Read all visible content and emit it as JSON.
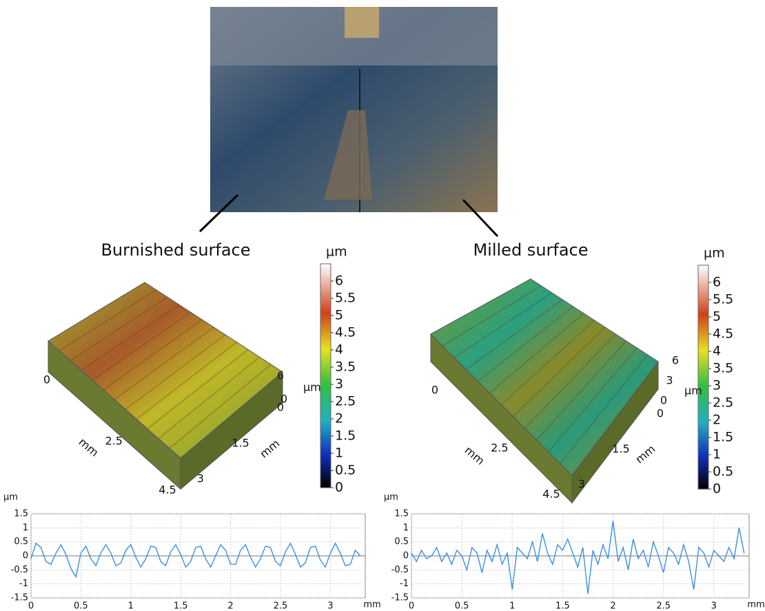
{
  "chart_data": [
    {
      "type": "surface",
      "title": "Burnished surface",
      "colorbar": {
        "unit": "µm",
        "lim": [
          0,
          6.5
        ],
        "ticks": [
          0,
          0.5,
          1,
          1.5,
          2,
          2.5,
          3,
          3.5,
          4,
          4.5,
          5,
          5.5,
          6
        ]
      },
      "x_axis": {
        "label": "mm",
        "lim": [
          0,
          4.5
        ],
        "ticks": [
          0,
          2.5,
          4.5
        ]
      },
      "y_axis": {
        "label": "mm",
        "lim": [
          0,
          3.1
        ],
        "ticks": [
          0,
          1.5,
          3
        ]
      },
      "z_axis": {
        "label": "µm",
        "lim": [
          0,
          6
        ],
        "ticks": [
          0,
          6
        ]
      }
    },
    {
      "type": "surface",
      "title": "Milled surface",
      "colorbar": {
        "unit": "µm",
        "lim": [
          0,
          6.5
        ],
        "ticks": [
          0,
          0.5,
          1,
          1.5,
          2,
          2.5,
          3,
          3.5,
          4,
          4.5,
          5,
          5.5,
          6
        ]
      },
      "x_axis": {
        "label": "mm",
        "lim": [
          0,
          4.5
        ],
        "ticks": [
          0,
          2.5,
          4.5
        ]
      },
      "y_axis": {
        "label": "mm",
        "lim": [
          0,
          3.1
        ],
        "ticks": [
          0,
          1.5,
          3
        ]
      },
      "z_axis": {
        "label": "µm",
        "lim": [
          0,
          6
        ],
        "ticks": [
          0,
          3,
          6
        ]
      }
    },
    {
      "type": "line",
      "y_label": "µm",
      "x_label": "mm",
      "xlim": [
        0,
        3.35
      ],
      "ylim": [
        -1.5,
        1.5
      ],
      "xticks": [
        0,
        0.5,
        1,
        1.5,
        2,
        2.5,
        3
      ],
      "yticks": [
        -1.5,
        -1,
        -0.5,
        0,
        0.5,
        1,
        1.5
      ],
      "grid": true,
      "x": [
        0,
        0.05,
        0.1,
        0.15,
        0.2,
        0.25,
        0.3,
        0.35,
        0.4,
        0.45,
        0.5,
        0.55,
        0.6,
        0.65,
        0.7,
        0.75,
        0.8,
        0.85,
        0.9,
        0.95,
        1,
        1.05,
        1.1,
        1.15,
        1.2,
        1.25,
        1.3,
        1.35,
        1.4,
        1.45,
        1.5,
        1.55,
        1.6,
        1.65,
        1.7,
        1.75,
        1.8,
        1.85,
        1.9,
        1.95,
        2,
        2.05,
        2.1,
        2.15,
        2.2,
        2.25,
        2.3,
        2.35,
        2.4,
        2.45,
        2.5,
        2.55,
        2.6,
        2.65,
        2.7,
        2.75,
        2.8,
        2.85,
        2.9,
        2.95,
        3,
        3.05,
        3.1,
        3.15,
        3.2,
        3.25,
        3.3
      ],
      "series": [
        {
          "color": "#3a8ee6",
          "values": [
            -0.1,
            0.45,
            0.3,
            -0.2,
            -0.3,
            0.1,
            0.4,
            0.05,
            -0.45,
            -0.75,
            0.1,
            0.35,
            -0.1,
            -0.35,
            0.1,
            0.4,
            0.1,
            -0.35,
            -0.25,
            0.2,
            0.4,
            -0.05,
            -0.4,
            -0.1,
            0.35,
            0.3,
            -0.2,
            -0.35,
            0.15,
            0.4,
            0.05,
            -0.4,
            -0.2,
            0.3,
            0.35,
            -0.1,
            -0.4,
            0,
            0.4,
            0.2,
            -0.3,
            -0.3,
            0.2,
            0.4,
            -0.05,
            -0.4,
            -0.1,
            0.35,
            0.3,
            -0.2,
            -0.35,
            0.15,
            0.45,
            0.05,
            -0.4,
            -0.25,
            0.3,
            0.35,
            -0.15,
            -0.4,
            0.1,
            0.45,
            0.1,
            -0.35,
            -0.3,
            0.2,
            0
          ]
        }
      ]
    },
    {
      "type": "line",
      "y_label": "µm",
      "x_label": "mm",
      "xlim": [
        0,
        3.35
      ],
      "ylim": [
        -1.5,
        1.5
      ],
      "xticks": [
        0,
        0.5,
        1,
        1.5,
        2,
        2.5,
        3
      ],
      "yticks": [
        -1.5,
        -1,
        -0.5,
        0,
        0.5,
        1,
        1.5
      ],
      "grid": true,
      "x": [
        0,
        0.05,
        0.1,
        0.15,
        0.2,
        0.25,
        0.3,
        0.35,
        0.4,
        0.45,
        0.5,
        0.55,
        0.6,
        0.65,
        0.7,
        0.75,
        0.8,
        0.85,
        0.9,
        0.95,
        1,
        1.05,
        1.1,
        1.15,
        1.2,
        1.25,
        1.3,
        1.35,
        1.4,
        1.45,
        1.5,
        1.55,
        1.6,
        1.65,
        1.7,
        1.75,
        1.8,
        1.85,
        1.9,
        1.95,
        2,
        2.05,
        2.1,
        2.15,
        2.2,
        2.25,
        2.3,
        2.35,
        2.4,
        2.45,
        2.5,
        2.55,
        2.6,
        2.65,
        2.7,
        2.75,
        2.8,
        2.85,
        2.9,
        2.95,
        3,
        3.05,
        3.1,
        3.15,
        3.2,
        3.25,
        3.3
      ],
      "series": [
        {
          "color": "#3a8ee6",
          "values": [
            0.1,
            -0.2,
            0.2,
            -0.1,
            0,
            0.3,
            -0.2,
            0.1,
            -0.3,
            0.2,
            0,
            -0.5,
            0.3,
            0.1,
            -0.6,
            0.2,
            -0.2,
            0.4,
            -0.3,
            0.1,
            -1.2,
            0.3,
            0.1,
            -0.1,
            0.5,
            -0.2,
            0.8,
            0.1,
            -0.3,
            0.4,
            0.2,
            0.6,
            0.1,
            -0.4,
            0.3,
            -1.35,
            0.2,
            -0.3,
            0.4,
            -0.1,
            1.25,
            -0.2,
            0.3,
            -0.5,
            0.6,
            -0.1,
            0.2,
            -0.4,
            0.5,
            0,
            -0.6,
            0.3,
            0.1,
            -0.3,
            0.4,
            -0.2,
            -1.2,
            0.3,
            0.1,
            -0.4,
            0.2,
            0,
            -0.2,
            0.3,
            -0.1,
            1,
            0.1
          ]
        }
      ]
    }
  ]
}
